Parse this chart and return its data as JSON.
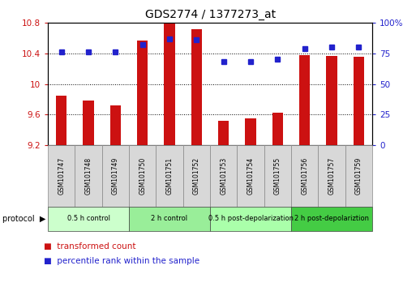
{
  "title": "GDS2774 / 1377273_at",
  "samples": [
    "GSM101747",
    "GSM101748",
    "GSM101749",
    "GSM101750",
    "GSM101751",
    "GSM101752",
    "GSM101753",
    "GSM101754",
    "GSM101755",
    "GSM101756",
    "GSM101757",
    "GSM101759"
  ],
  "red_values": [
    9.85,
    9.78,
    9.72,
    10.57,
    10.8,
    10.72,
    9.52,
    9.55,
    9.62,
    10.38,
    10.37,
    10.36
  ],
  "blue_values": [
    76,
    76,
    76,
    82,
    87,
    86,
    68,
    68,
    70,
    79,
    80,
    80
  ],
  "ymin": 9.2,
  "ymax": 10.8,
  "y2min": 0,
  "y2max": 100,
  "yticks": [
    9.2,
    9.6,
    10.0,
    10.4,
    10.8
  ],
  "y2ticks": [
    0,
    25,
    50,
    75,
    100
  ],
  "ytick_labels": [
    "9.2",
    "9.6",
    "10",
    "10.4",
    "10.8"
  ],
  "y2tick_labels": [
    "0",
    "25",
    "50",
    "75",
    "100%"
  ],
  "red_color": "#CC1111",
  "blue_color": "#2222CC",
  "bar_bottom": 9.2,
  "bg_color": "#ffffff",
  "groups": [
    {
      "label": "0.5 h control",
      "start": 0,
      "end": 3,
      "color": "#ccffcc"
    },
    {
      "label": "2 h control",
      "start": 3,
      "end": 6,
      "color": "#99ee99"
    },
    {
      "label": "0.5 h post-depolarization",
      "start": 6,
      "end": 9,
      "color": "#aaffaa"
    },
    {
      "label": "2 h post-depolariztion",
      "start": 9,
      "end": 12,
      "color": "#44cc44"
    }
  ],
  "protocol_label": "protocol",
  "legend_red": "transformed count",
  "legend_blue": "percentile rank within the sample",
  "title_fontsize": 10,
  "tick_fontsize": 7.5,
  "label_fontsize": 7
}
